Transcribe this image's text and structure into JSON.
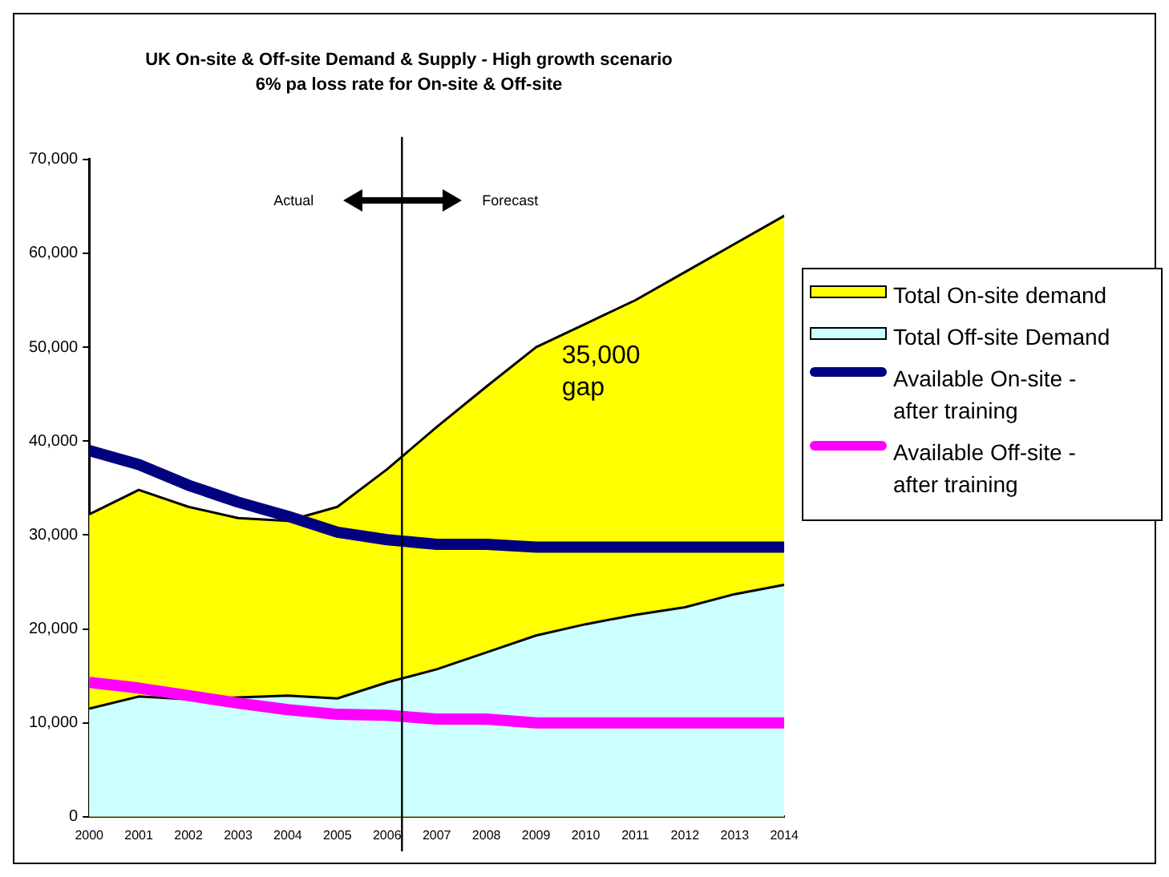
{
  "chart_data": {
    "type": "area",
    "title": "UK On-site & Off-site Demand & Supply - High growth scenario",
    "subtitle": "6% pa loss rate for On-site & Off-site",
    "x": [
      2000,
      2001,
      2002,
      2003,
      2004,
      2005,
      2006,
      2007,
      2008,
      2009,
      2010,
      2011,
      2012,
      2013,
      2014
    ],
    "series": [
      {
        "name": "Total On-site demand",
        "type": "area",
        "color": "#ffff00",
        "values": [
          32200,
          34800,
          33000,
          31800,
          31500,
          33000,
          37000,
          41500,
          45800,
          50000,
          52500,
          55000,
          58000,
          61000,
          64000
        ]
      },
      {
        "name": "Total Off-site Demand",
        "type": "area",
        "color": "#ccffff",
        "values": [
          11500,
          12800,
          12500,
          12700,
          12900,
          12600,
          14300,
          15700,
          17500,
          19300,
          20500,
          21500,
          22300,
          23700,
          24700
        ]
      },
      {
        "name": "Available On-site - after training",
        "type": "line",
        "color": "#000080",
        "values": [
          39000,
          37500,
          35300,
          33500,
          32000,
          30300,
          29500,
          29000,
          29000,
          28700,
          28700,
          28700,
          28700,
          28700,
          28700
        ]
      },
      {
        "name": "Available Off-site - after training",
        "type": "line",
        "color": "#ff00ff",
        "values": [
          14300,
          13700,
          12900,
          12100,
          11400,
          10900,
          10800,
          10400,
          10400,
          10000,
          10000,
          10000,
          10000,
          10000,
          10000
        ]
      }
    ],
    "xlim": [
      2000,
      2014
    ],
    "xticks": [
      2000,
      2001,
      2002,
      2003,
      2004,
      2005,
      2006,
      2007,
      2008,
      2009,
      2010,
      2011,
      2012,
      2013,
      2014
    ],
    "ylim": [
      0,
      70000
    ],
    "yticks": [
      0,
      {
        "value": 10000,
        "label": "10,000"
      },
      {
        "value": 20000,
        "label": "20,000"
      },
      {
        "value": 30000,
        "label": "30,000"
      },
      {
        "value": 40000,
        "label": "40,000"
      },
      {
        "value": 50000,
        "label": "50,000"
      },
      {
        "value": 60000,
        "label": "60,000"
      },
      {
        "value": 70000,
        "label": "70,000"
      }
    ],
    "ref_lines": [
      {
        "axis": "x",
        "value": 2006.3,
        "color": "#000000"
      }
    ],
    "annotations": [
      "Actual",
      "Forecast",
      "35,000 gap"
    ],
    "grid": false,
    "legend": "right",
    "marker": "none",
    "line_style": "solid"
  }
}
